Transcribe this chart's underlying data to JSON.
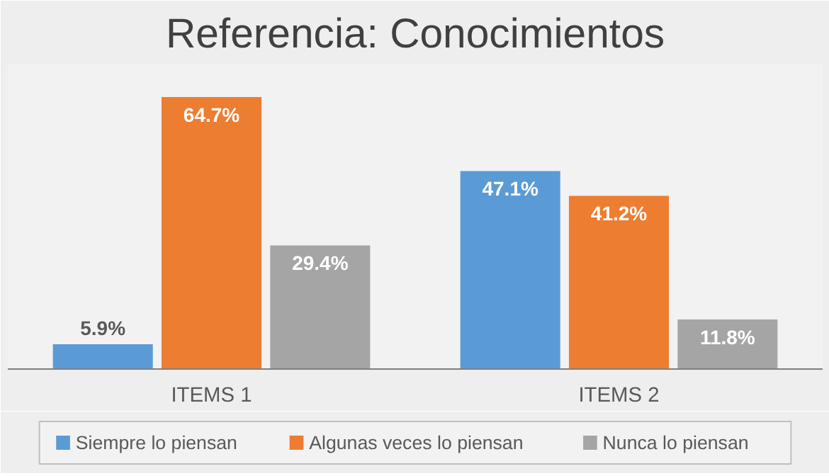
{
  "chart_data": {
    "type": "bar",
    "title": "Referencia: Conocimientos",
    "categories": [
      "ITEMS 1",
      "ITEMS 2"
    ],
    "series": [
      {
        "name": "Siempre lo piensan",
        "color": "#5b9bd5",
        "values": [
          5.9,
          47.1
        ],
        "value_labels": [
          "5.9%",
          "47.1%"
        ]
      },
      {
        "name": "Algunas veces lo piensan",
        "color": "#ed7d31",
        "values": [
          64.7,
          41.2
        ],
        "value_labels": [
          "64.7%",
          "41.2%"
        ]
      },
      {
        "name": "Nunca lo piensan",
        "color": "#a5a5a5",
        "values": [
          29.4,
          11.8
        ],
        "value_labels": [
          "29.4%",
          "11.8%"
        ]
      }
    ],
    "legend": "bottom",
    "tick_labels": "x"
  }
}
